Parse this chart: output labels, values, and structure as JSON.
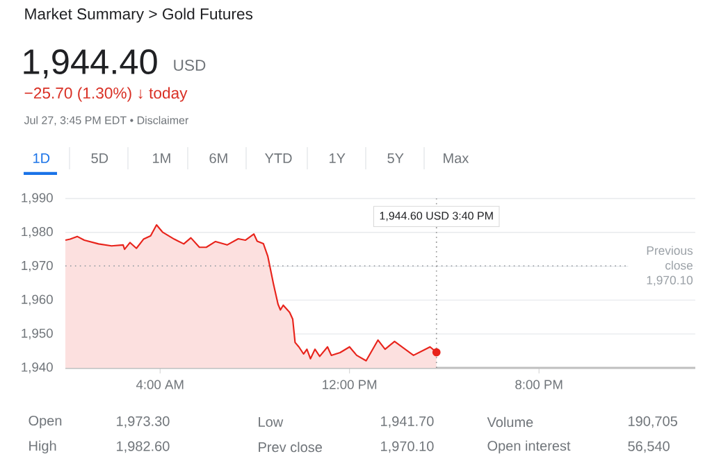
{
  "chart_data": {
    "type": "area",
    "title": "Market Summary > Gold Futures",
    "annotations": [
      "1,944.40",
      "USD",
      "−25.70 (1.30%) ↓ today",
      "Jul 27, 3:45 PM EDT • Disclaimer",
      "1D",
      "5D",
      "1M",
      "6M",
      "YTD",
      "1Y",
      "5Y",
      "Max",
      "Open",
      "1,973.30",
      "Low",
      "1,941.70",
      "Volume",
      "190,705",
      "High",
      "1,982.60",
      "Prev close",
      "1,970.10",
      "Open interest",
      "56,540",
      "1,944.60 USD   3:40 PM"
    ],
    "series": [
      {
        "color": "#e8231b",
        "x": [
          0,
          0.2,
          0.5,
          0.8,
          1.4,
          1.95,
          2.44,
          2.5,
          2.73,
          3.0,
          3.3,
          3.6,
          3.85,
          4.1,
          4.6,
          5.0,
          5.3,
          5.66,
          5.95,
          6.34,
          6.83,
          7.3,
          7.6,
          7.96,
          8.1,
          8.36,
          8.55,
          8.79,
          8.98,
          9.08,
          9.2,
          9.47,
          9.6,
          9.7,
          9.86,
          10.06,
          10.2,
          10.35,
          10.54,
          10.74,
          11.07,
          11.23,
          11.6,
          12.0,
          12.3,
          12.7,
          13.2,
          13.5,
          13.9,
          14.7,
          15.4,
          15.67
        ],
        "values": [
          1977.7,
          1978,
          1978.8,
          1977.7,
          1976.6,
          1976,
          1976.3,
          1975,
          1977,
          1975.3,
          1978,
          1979,
          1982.2,
          1980.1,
          1978,
          1976.6,
          1978.4,
          1975.6,
          1975.6,
          1977.3,
          1976.3,
          1978.1,
          1977.7,
          1979.5,
          1977.4,
          1976.7,
          1972.9,
          1964.7,
          1958.8,
          1957.1,
          1958.5,
          1956.4,
          1954.4,
          1947.5,
          1946.2,
          1944.1,
          1945.5,
          1942.7,
          1945.5,
          1943.4,
          1946.2,
          1943.7,
          1944.5,
          1946.2,
          1943.7,
          1942.1,
          1948.2,
          1945.5,
          1947.8,
          1943.7,
          1946.2,
          1944.6
        ]
      }
    ],
    "xlim": [
      0,
      26.6
    ],
    "xticks": [
      {
        "value": 4,
        "label": "4:00 AM"
      },
      {
        "value": 12,
        "label": "12:00 PM"
      },
      {
        "value": 20,
        "label": "8:00 PM"
      }
    ],
    "ylim": [
      1940,
      1990
    ],
    "yticks": [
      {
        "value": 1940,
        "label": "1,940"
      },
      {
        "value": 1950,
        "label": "1,950"
      },
      {
        "value": 1960,
        "label": "1,960"
      },
      {
        "value": 1970,
        "label": "1,970"
      },
      {
        "value": 1980,
        "label": "1,980"
      },
      {
        "value": 1990,
        "label": "1,990"
      }
    ],
    "ref_lines": [
      {
        "axis": "y",
        "value": 1970.1,
        "label": "Previous close 1,970.10",
        "color": "#9aa0a6",
        "line_style": "dotted"
      },
      {
        "axis": "x",
        "value": 15.67,
        "color": "#8c8c8c",
        "line_style": "dotted"
      }
    ],
    "grid": "y",
    "marker": "none",
    "line_style": "solid"
  }
}
